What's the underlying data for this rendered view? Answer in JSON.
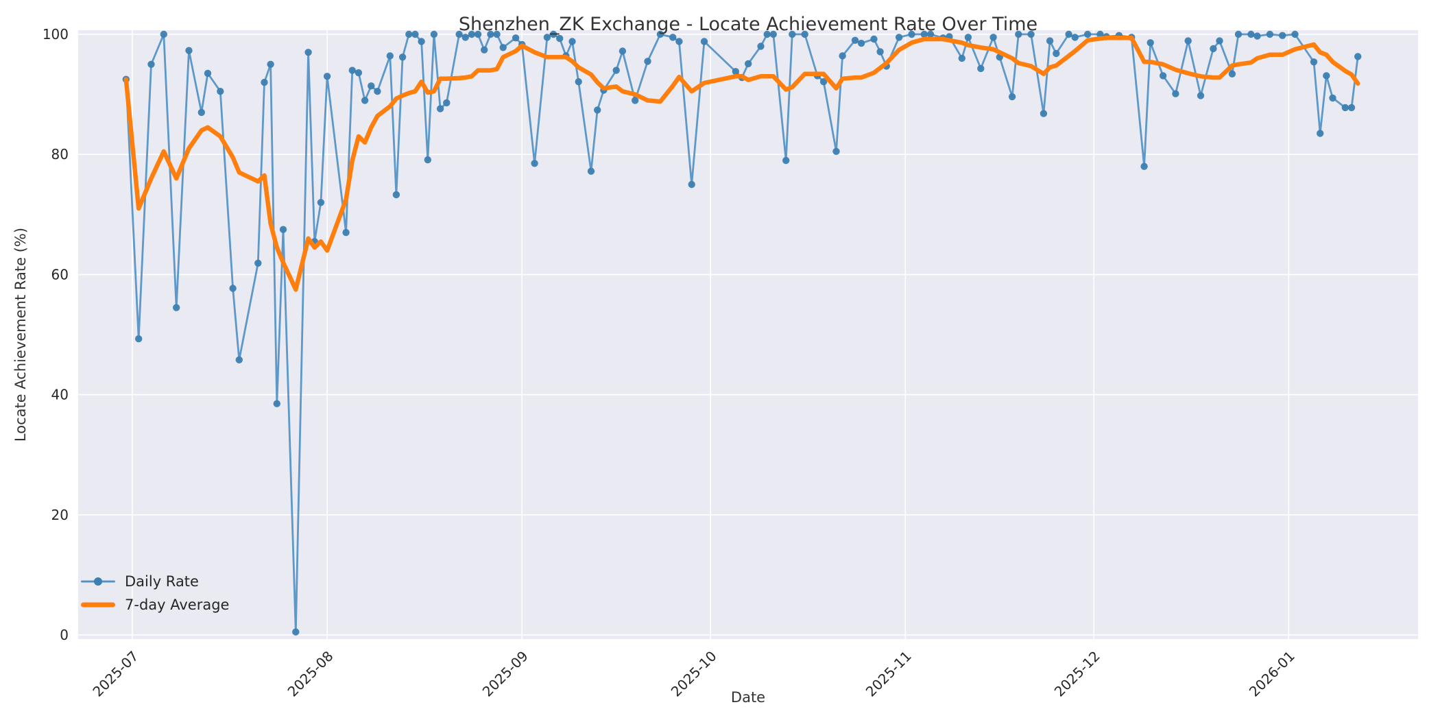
{
  "chart_data": {
    "type": "line",
    "title": "Shenzhen_ZK Exchange - Locate Achievement Rate Over Time",
    "xlabel": "Date",
    "ylabel": "Locate Achievement Rate (%)",
    "grid": true,
    "legend_position": "lower left",
    "ylim": [
      0,
      100
    ],
    "y_ticks": [
      0,
      20,
      40,
      60,
      80,
      100
    ],
    "x_tick_labels": [
      "2025-07",
      "2025-08",
      "2025-09",
      "2025-10",
      "2025-11",
      "2025-12",
      "2026-01"
    ],
    "x": [
      "2025-06-30",
      "2025-07-02",
      "2025-07-04",
      "2025-07-06",
      "2025-07-08",
      "2025-07-10",
      "2025-07-12",
      "2025-07-13",
      "2025-07-15",
      "2025-07-17",
      "2025-07-18",
      "2025-07-21",
      "2025-07-22",
      "2025-07-23",
      "2025-07-24",
      "2025-07-25",
      "2025-07-27",
      "2025-07-29",
      "2025-07-30",
      "2025-07-31",
      "2025-08-01",
      "2025-08-04",
      "2025-08-05",
      "2025-08-06",
      "2025-08-07",
      "2025-08-08",
      "2025-08-09",
      "2025-08-11",
      "2025-08-12",
      "2025-08-13",
      "2025-08-14",
      "2025-08-15",
      "2025-08-16",
      "2025-08-17",
      "2025-08-18",
      "2025-08-19",
      "2025-08-20",
      "2025-08-22",
      "2025-08-23",
      "2025-08-24",
      "2025-08-25",
      "2025-08-26",
      "2025-08-27",
      "2025-08-28",
      "2025-08-29",
      "2025-08-31",
      "2025-09-01",
      "2025-09-03",
      "2025-09-05",
      "2025-09-06",
      "2025-09-07",
      "2025-09-08",
      "2025-09-09",
      "2025-09-10",
      "2025-09-12",
      "2025-09-13",
      "2025-09-14",
      "2025-09-16",
      "2025-09-17",
      "2025-09-19",
      "2025-09-21",
      "2025-09-23",
      "2025-09-25",
      "2025-09-26",
      "2025-09-28",
      "2025-09-30",
      "2025-10-05",
      "2025-10-06",
      "2025-10-07",
      "2025-10-09",
      "2025-10-10",
      "2025-10-11",
      "2025-10-13",
      "2025-10-14",
      "2025-10-16",
      "2025-10-18",
      "2025-10-19",
      "2025-10-21",
      "2025-10-22",
      "2025-10-24",
      "2025-10-25",
      "2025-10-27",
      "2025-10-28",
      "2025-10-29",
      "2025-10-31",
      "2025-11-02",
      "2025-11-04",
      "2025-11-05",
      "2025-11-07",
      "2025-11-08",
      "2025-11-10",
      "2025-11-11",
      "2025-11-13",
      "2025-11-15",
      "2025-11-16",
      "2025-11-18",
      "2025-11-19",
      "2025-11-21",
      "2025-11-23",
      "2025-11-24",
      "2025-11-25",
      "2025-11-27",
      "2025-11-28",
      "2025-11-30",
      "2025-12-02",
      "2025-12-03",
      "2025-12-05",
      "2025-12-07",
      "2025-12-09",
      "2025-12-10",
      "2025-12-12",
      "2025-12-14",
      "2025-12-16",
      "2025-12-18",
      "2025-12-20",
      "2025-12-21",
      "2025-12-23",
      "2025-12-24",
      "2025-12-26",
      "2025-12-27",
      "2025-12-29",
      "2025-12-31",
      "2026-01-02",
      "2026-01-05",
      "2026-01-06",
      "2026-01-07",
      "2026-01-08",
      "2026-01-10",
      "2026-01-11",
      "2026-01-12"
    ],
    "series": [
      {
        "name": "Daily Rate",
        "marker": "o",
        "values": [
          92.5,
          49.3,
          95.0,
          100.0,
          54.5,
          97.3,
          87.0,
          93.5,
          90.5,
          57.7,
          45.8,
          61.9,
          92.0,
          95.0,
          38.5,
          67.5,
          0.5,
          97.0,
          65.5,
          72.0,
          93.0,
          67.0,
          94.0,
          93.6,
          89.0,
          91.4,
          90.5,
          96.4,
          73.3,
          96.2,
          100.0,
          100.0,
          98.8,
          79.1,
          100.0,
          87.6,
          88.6,
          100.0,
          99.5,
          100.0,
          100.0,
          97.4,
          100.0,
          100.0,
          97.8,
          99.4,
          98.3,
          78.5,
          99.5,
          100.0,
          99.3,
          96.4,
          98.8,
          92.1,
          77.2,
          87.4,
          90.7,
          94.0,
          97.2,
          89.0,
          95.5,
          100.0,
          99.5,
          98.8,
          75.0,
          98.8,
          93.8,
          92.8,
          95.1,
          98.0,
          100.0,
          100.0,
          79.0,
          100.0,
          100.0,
          93.1,
          92.1,
          80.5,
          96.4,
          99.0,
          98.5,
          99.2,
          97.1,
          94.7,
          99.5,
          100.0,
          100.0,
          100.0,
          99.4,
          99.6,
          96.0,
          99.5,
          94.3,
          99.5,
          96.2,
          89.6,
          100.0,
          100.0,
          86.8,
          98.9,
          96.8,
          100.0,
          99.5,
          100.0,
          100.0,
          99.6,
          99.8,
          99.5,
          78.0,
          98.6,
          93.1,
          90.1,
          98.9,
          89.8,
          97.6,
          98.9,
          93.4,
          100.0,
          100.0,
          99.7,
          100.0,
          99.8,
          100.0,
          95.4,
          83.5,
          93.1,
          89.4,
          87.8,
          87.8,
          96.3
        ]
      },
      {
        "name": "7-day Average",
        "marker": null,
        "values": [
          92.5,
          71.0,
          76.0,
          80.5,
          76.0,
          81.0,
          84.0,
          84.5,
          83.0,
          79.5,
          77.0,
          75.5,
          76.5,
          68.5,
          64.5,
          62.0,
          57.5,
          66.0,
          64.5,
          65.5,
          64.0,
          72.5,
          79.0,
          83.0,
          82.0,
          84.5,
          86.4,
          88.0,
          89.3,
          89.8,
          90.2,
          90.5,
          92.1,
          90.3,
          90.5,
          92.6,
          92.6,
          92.7,
          92.8,
          93.0,
          94.0,
          94.0,
          94.0,
          94.2,
          96.2,
          97.2,
          98.1,
          97.0,
          96.2,
          96.2,
          96.2,
          96.2,
          95.5,
          94.5,
          93.3,
          92.0,
          91.0,
          91.3,
          90.5,
          90.0,
          89.0,
          88.8,
          91.4,
          92.9,
          90.5,
          91.9,
          93.0,
          93.0,
          92.4,
          93.0,
          93.0,
          93.0,
          90.8,
          91.2,
          93.4,
          93.4,
          93.4,
          91.0,
          92.6,
          92.8,
          92.8,
          93.6,
          94.4,
          95.2,
          97.4,
          98.6,
          99.2,
          99.2,
          99.2,
          99.0,
          98.6,
          98.2,
          97.8,
          97.5,
          97.0,
          96.0,
          95.2,
          94.7,
          93.4,
          94.5,
          94.8,
          96.4,
          97.2,
          99.0,
          99.3,
          99.4,
          99.4,
          99.4,
          95.4,
          95.4,
          95.0,
          94.1,
          93.5,
          93.0,
          92.8,
          92.8,
          94.8,
          95.0,
          95.3,
          96.0,
          96.6,
          96.6,
          97.5,
          98.3,
          97.0,
          96.6,
          95.4,
          93.9,
          93.3,
          91.8
        ]
      }
    ]
  },
  "colors": {
    "figure_bg": "#ffffff",
    "plot_bg": "#eaeaf2",
    "grid": "#ffffff",
    "daily_line": "#5593c6",
    "daily_marker": "#3c7fb1",
    "avg_line": "#ff7f0e",
    "text": "#333333",
    "tick_text": "#262626"
  }
}
